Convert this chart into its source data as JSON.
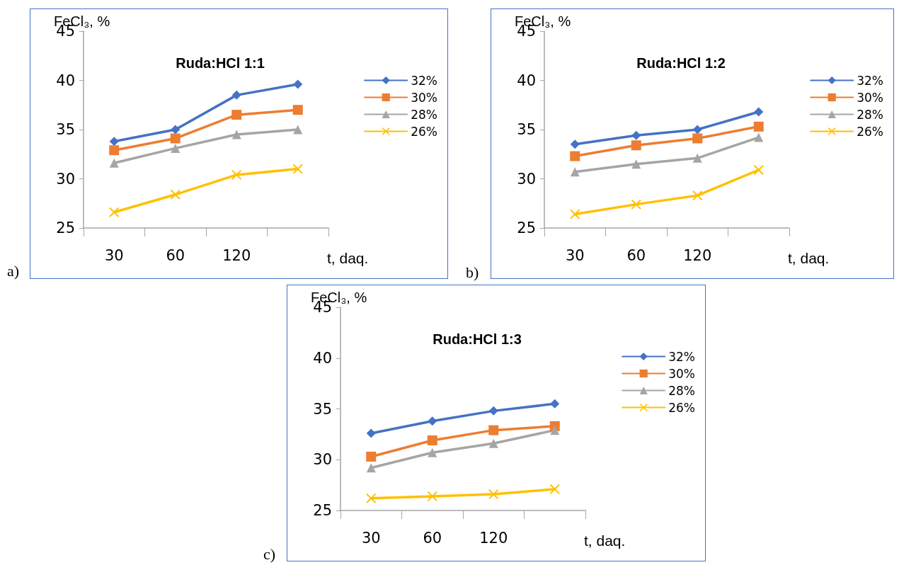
{
  "chart_data": [
    {
      "type": "line",
      "title": "Ruda:HCl 1:1",
      "xlabel": "t, daq.",
      "ylabel": "FeCl₃, %",
      "annotations": [
        "a)"
      ],
      "categories": [
        "30",
        "60",
        "120",
        null
      ],
      "ylim": [
        25,
        45
      ],
      "yticks": [
        25,
        30,
        35,
        40,
        45
      ],
      "grid": false,
      "legend": "right",
      "line_style": "solid",
      "series": [
        {
          "name": "32%",
          "color": "#4472c4",
          "marker": "diamond",
          "values": [
            33.8,
            35.0,
            38.5,
            39.6
          ]
        },
        {
          "name": "30%",
          "color": "#ed7d31",
          "marker": "square",
          "values": [
            32.9,
            34.1,
            36.5,
            37.0
          ]
        },
        {
          "name": "28%",
          "color": "#a5a5a5",
          "marker": "triangle",
          "values": [
            31.6,
            33.1,
            34.5,
            35.0
          ]
        },
        {
          "name": "26%",
          "color": "#ffc000",
          "marker": "cross",
          "values": [
            26.6,
            28.4,
            30.4,
            31.0
          ]
        }
      ]
    },
    {
      "type": "line",
      "title": "Ruda:HCl 1:2",
      "xlabel": "t, daq.",
      "ylabel": "FeCl₃, %",
      "annotations": [
        "b)"
      ],
      "categories": [
        "30",
        "60",
        "120",
        null
      ],
      "ylim": [
        25,
        45
      ],
      "yticks": [
        25,
        30,
        35,
        40,
        45
      ],
      "grid": false,
      "legend": "right",
      "line_style": "solid",
      "series": [
        {
          "name": "32%",
          "color": "#4472c4",
          "marker": "diamond",
          "values": [
            33.5,
            34.4,
            35.0,
            36.8
          ]
        },
        {
          "name": "30%",
          "color": "#ed7d31",
          "marker": "square",
          "values": [
            32.3,
            33.4,
            34.1,
            35.3
          ]
        },
        {
          "name": "28%",
          "color": "#a5a5a5",
          "marker": "triangle",
          "values": [
            30.7,
            31.5,
            32.1,
            34.2
          ]
        },
        {
          "name": "26%",
          "color": "#ffc000",
          "marker": "cross",
          "values": [
            26.4,
            27.4,
            28.3,
            30.9
          ]
        }
      ]
    },
    {
      "type": "line",
      "title": "Ruda:HCl 1:3",
      "xlabel": "t, daq.",
      "ylabel": "FeCl₃, %",
      "annotations": [
        "c)"
      ],
      "categories": [
        "30",
        "60",
        "120",
        null
      ],
      "ylim": [
        25,
        45
      ],
      "yticks": [
        25,
        30,
        35,
        40,
        45
      ],
      "grid": false,
      "legend": "right",
      "line_style": "solid",
      "series": [
        {
          "name": "32%",
          "color": "#4472c4",
          "marker": "diamond",
          "values": [
            32.6,
            33.8,
            34.8,
            35.5
          ]
        },
        {
          "name": "30%",
          "color": "#ed7d31",
          "marker": "square",
          "values": [
            30.3,
            31.9,
            32.9,
            33.3
          ]
        },
        {
          "name": "28%",
          "color": "#a5a5a5",
          "marker": "triangle",
          "values": [
            29.2,
            30.7,
            31.6,
            32.9
          ]
        },
        {
          "name": "26%",
          "color": "#ffc000",
          "marker": "cross",
          "values": [
            26.2,
            26.4,
            26.6,
            27.1
          ]
        }
      ]
    }
  ]
}
